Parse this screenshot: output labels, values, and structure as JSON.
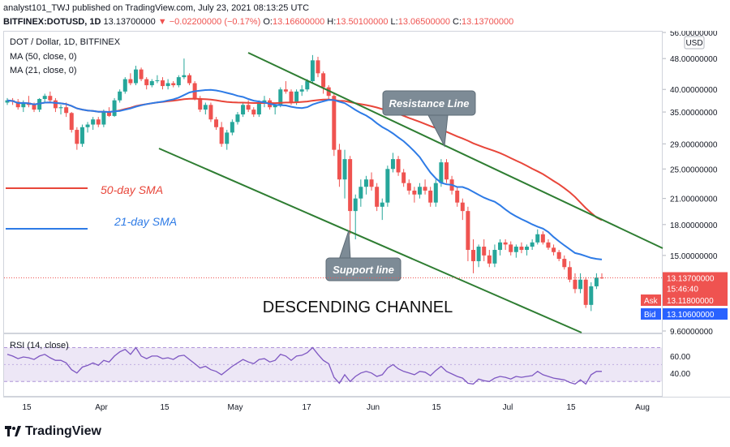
{
  "header": {
    "line1_prefix": "analyst101_TWJ published on TradingView.com, July 23, 2021 08:13:25 UTC",
    "symbol": "BITFINEX:DOTUSD, 1D",
    "last": "13.13700000",
    "change": "−0.02200000 (−0.17%)",
    "o_label": "O:",
    "o": "13.16600000",
    "h_label": "H:",
    "h": "13.50100000",
    "l_label": "L:",
    "l": "13.06500000",
    "c_label": "C:",
    "c": "13.13700000"
  },
  "legend": {
    "title": "DOT / Dollar, 1D, BITFINEX",
    "ma50": "MA (50, close, 0)",
    "ma21": "MA (21, close, 0)"
  },
  "annotations": {
    "resistance": "Resistance Line",
    "support": "Support line",
    "channel": "DESCENDING CHANNEL",
    "sma50": "50-day SMA",
    "sma21": "21-day SMA"
  },
  "price_axis": {
    "currency": "USD",
    "ticks": [
      "56.00000000",
      "48.00000000",
      "40.00000000",
      "35.00000000",
      "29.00000000",
      "25.00000000",
      "21.00000000",
      "18.00000000",
      "15.00000000",
      "9.60000000"
    ],
    "last_price": "13.13700000",
    "countdown": "15:46:40",
    "ask_label": "Ask",
    "ask": "13.11800000",
    "bid_label": "Bid",
    "bid": "13.10600000"
  },
  "rsi": {
    "title": "RSI (14, close)",
    "ticks": [
      "60.00",
      "40.00"
    ],
    "upper": 70,
    "lower": 30
  },
  "time_axis": [
    "15",
    "Apr",
    "15",
    "May",
    "17",
    "Jun",
    "15",
    "Jul",
    "15",
    "Aug"
  ],
  "footer": {
    "brand": "TradingView"
  },
  "colors": {
    "up": "#26a69a",
    "down": "#ef5350",
    "ma50": "#e8463a",
    "ma21": "#2e7be6",
    "channel": "#2e7d32",
    "rsi": "#7e57c2",
    "rsi_band": "#ede7f6"
  },
  "chart_data": {
    "type": "candlestick",
    "title": "DOT / Dollar, 1D, BITFINEX",
    "scale": "log",
    "ylim": [
      9.6,
      56
    ],
    "candles": [
      [
        37.0,
        38.0,
        36.5,
        37.5
      ],
      [
        37.5,
        38.0,
        36.5,
        37.2
      ],
      [
        37.2,
        37.8,
        35.5,
        36.0
      ],
      [
        36.0,
        37.5,
        35.0,
        37.0
      ],
      [
        37.0,
        38.5,
        36.0,
        36.5
      ],
      [
        36.5,
        37.0,
        35.0,
        35.5
      ],
      [
        35.5,
        38.0,
        35.0,
        37.8
      ],
      [
        37.8,
        39.0,
        37.0,
        38.5
      ],
      [
        38.5,
        39.5,
        37.0,
        37.5
      ],
      [
        37.5,
        38.0,
        35.0,
        35.8
      ],
      [
        35.8,
        36.5,
        34.5,
        36.0
      ],
      [
        36.0,
        37.0,
        34.0,
        34.8
      ],
      [
        34.8,
        35.0,
        31.0,
        31.5
      ],
      [
        31.5,
        32.0,
        28.0,
        29.0
      ],
      [
        29.0,
        32.5,
        28.5,
        32.0
      ],
      [
        32.0,
        33.0,
        31.0,
        32.5
      ],
      [
        32.5,
        34.0,
        31.5,
        33.5
      ],
      [
        33.5,
        34.0,
        32.0,
        32.5
      ],
      [
        32.5,
        35.5,
        32.0,
        35.0
      ],
      [
        35.0,
        36.0,
        34.0,
        34.2
      ],
      [
        34.2,
        38.0,
        34.0,
        37.5
      ],
      [
        37.5,
        40.0,
        37.0,
        39.5
      ],
      [
        39.5,
        43.0,
        39.0,
        42.5
      ],
      [
        42.5,
        44.0,
        41.0,
        41.5
      ],
      [
        41.5,
        46.0,
        41.0,
        45.0
      ],
      [
        45.0,
        45.5,
        42.0,
        42.5
      ],
      [
        42.5,
        43.0,
        40.0,
        41.0
      ],
      [
        41.0,
        42.5,
        40.5,
        42.0
      ],
      [
        42.0,
        43.5,
        41.5,
        42.2
      ],
      [
        42.2,
        43.0,
        40.0,
        40.8
      ],
      [
        40.8,
        42.5,
        40.0,
        41.5
      ],
      [
        41.5,
        42.0,
        40.5,
        41.0
      ],
      [
        41.0,
        43.5,
        40.5,
        43.0
      ],
      [
        43.0,
        48.0,
        42.5,
        43.5
      ],
      [
        43.5,
        44.0,
        41.0,
        41.5
      ],
      [
        41.5,
        42.0,
        37.5,
        38.0
      ],
      [
        38.0,
        38.5,
        35.0,
        35.5
      ],
      [
        35.5,
        37.0,
        34.5,
        36.5
      ],
      [
        36.5,
        37.0,
        33.0,
        33.5
      ],
      [
        33.5,
        34.0,
        31.5,
        32.0
      ],
      [
        32.0,
        33.0,
        28.5,
        29.0
      ],
      [
        29.0,
        31.5,
        28.0,
        31.0
      ],
      [
        31.0,
        33.5,
        30.5,
        33.0
      ],
      [
        33.0,
        35.0,
        32.5,
        34.5
      ],
      [
        34.5,
        37.0,
        34.0,
        36.5
      ],
      [
        36.5,
        37.5,
        35.0,
        35.5
      ],
      [
        35.5,
        36.0,
        34.0,
        34.5
      ],
      [
        34.5,
        37.5,
        34.0,
        37.0
      ],
      [
        37.0,
        38.5,
        36.0,
        37.5
      ],
      [
        37.5,
        38.0,
        35.5,
        36.0
      ],
      [
        36.0,
        37.0,
        34.5,
        36.5
      ],
      [
        36.5,
        40.5,
        36.0,
        40.0
      ],
      [
        40.0,
        42.0,
        39.0,
        39.5
      ],
      [
        39.5,
        40.0,
        36.5,
        37.0
      ],
      [
        37.0,
        40.0,
        36.5,
        39.5
      ],
      [
        39.5,
        41.0,
        38.5,
        40.0
      ],
      [
        40.0,
        42.5,
        39.5,
        42.0
      ],
      [
        42.0,
        49.0,
        41.5,
        47.5
      ],
      [
        47.5,
        48.5,
        43.0,
        44.0
      ],
      [
        44.0,
        44.5,
        39.0,
        40.5
      ],
      [
        40.5,
        41.0,
        37.5,
        38.5
      ],
      [
        38.5,
        39.0,
        27.0,
        28.0
      ],
      [
        28.0,
        29.0,
        22.5,
        23.5
      ],
      [
        23.5,
        28.0,
        21.0,
        26.5
      ],
      [
        26.5,
        27.0,
        17.0,
        19.5
      ],
      [
        19.5,
        21.5,
        16.5,
        21.0
      ],
      [
        21.0,
        23.5,
        20.0,
        22.5
      ],
      [
        22.5,
        24.0,
        21.5,
        23.5
      ],
      [
        23.5,
        24.5,
        22.0,
        22.5
      ],
      [
        22.5,
        23.0,
        19.5,
        20.0
      ],
      [
        20.0,
        21.0,
        18.5,
        20.5
      ],
      [
        20.5,
        25.5,
        20.0,
        25.0
      ],
      [
        25.0,
        27.5,
        24.5,
        26.5
      ],
      [
        26.5,
        27.0,
        24.0,
        24.5
      ],
      [
        24.5,
        25.0,
        22.5,
        23.0
      ],
      [
        23.0,
        23.5,
        21.5,
        22.0
      ],
      [
        22.0,
        22.5,
        20.5,
        21.5
      ],
      [
        21.5,
        23.0,
        21.0,
        22.5
      ],
      [
        22.5,
        23.5,
        21.5,
        22.0
      ],
      [
        22.0,
        22.5,
        20.0,
        20.5
      ],
      [
        20.5,
        23.5,
        20.0,
        23.0
      ],
      [
        23.0,
        26.5,
        22.5,
        26.0
      ],
      [
        26.0,
        26.5,
        23.0,
        23.5
      ],
      [
        23.5,
        24.0,
        21.5,
        22.0
      ],
      [
        22.0,
        22.5,
        20.0,
        20.5
      ],
      [
        20.5,
        21.0,
        18.5,
        19.5
      ],
      [
        19.5,
        20.0,
        14.5,
        15.5
      ],
      [
        15.5,
        16.5,
        13.5,
        14.5
      ],
      [
        14.5,
        16.0,
        14.0,
        15.8
      ],
      [
        15.8,
        16.5,
        14.5,
        15.0
      ],
      [
        15.0,
        15.5,
        14.0,
        14.3
      ],
      [
        14.3,
        16.0,
        14.0,
        15.5
      ],
      [
        15.5,
        16.5,
        15.0,
        16.2
      ],
      [
        16.2,
        16.5,
        15.5,
        16.0
      ],
      [
        16.0,
        16.3,
        15.0,
        15.3
      ],
      [
        15.3,
        16.0,
        14.8,
        15.8
      ],
      [
        15.8,
        16.2,
        15.2,
        15.5
      ],
      [
        15.5,
        16.0,
        15.0,
        15.8
      ],
      [
        15.8,
        16.5,
        15.5,
        16.2
      ],
      [
        16.2,
        17.5,
        16.0,
        17.0
      ],
      [
        17.0,
        17.3,
        16.0,
        16.2
      ],
      [
        16.2,
        16.5,
        15.5,
        15.7
      ],
      [
        15.7,
        16.0,
        15.0,
        15.3
      ],
      [
        15.3,
        15.5,
        14.5,
        14.7
      ],
      [
        14.7,
        15.0,
        13.8,
        14.0
      ],
      [
        14.0,
        14.5,
        12.8,
        13.0
      ],
      [
        13.0,
        13.5,
        12.0,
        12.3
      ],
      [
        12.3,
        13.5,
        12.0,
        13.0
      ],
      [
        13.0,
        13.2,
        11.0,
        11.2
      ],
      [
        11.2,
        12.8,
        10.8,
        12.5
      ],
      [
        12.5,
        13.5,
        12.3,
        13.16
      ],
      [
        13.166,
        13.501,
        13.065,
        13.137
      ]
    ],
    "rsi_values": [
      62,
      60,
      57,
      59,
      58,
      56,
      60,
      62,
      58,
      55,
      55,
      52,
      44,
      40,
      47,
      49,
      52,
      49,
      55,
      53,
      60,
      65,
      68,
      62,
      70,
      60,
      57,
      60,
      60,
      57,
      58,
      56,
      60,
      61,
      56,
      51,
      46,
      48,
      44,
      42,
      38,
      43,
      48,
      52,
      56,
      53,
      51,
      56,
      57,
      53,
      55,
      62,
      60,
      55,
      60,
      61,
      64,
      70,
      62,
      55,
      51,
      35,
      28,
      38,
      30,
      36,
      40,
      42,
      40,
      36,
      38,
      46,
      50,
      45,
      42,
      40,
      38,
      42,
      41,
      37,
      43,
      48,
      42,
      39,
      36,
      34,
      28,
      27,
      33,
      31,
      30,
      34,
      36,
      35,
      33,
      36,
      35,
      36,
      37,
      42,
      38,
      36,
      34,
      33,
      32,
      29,
      27,
      32,
      27,
      38,
      42,
      42
    ]
  }
}
